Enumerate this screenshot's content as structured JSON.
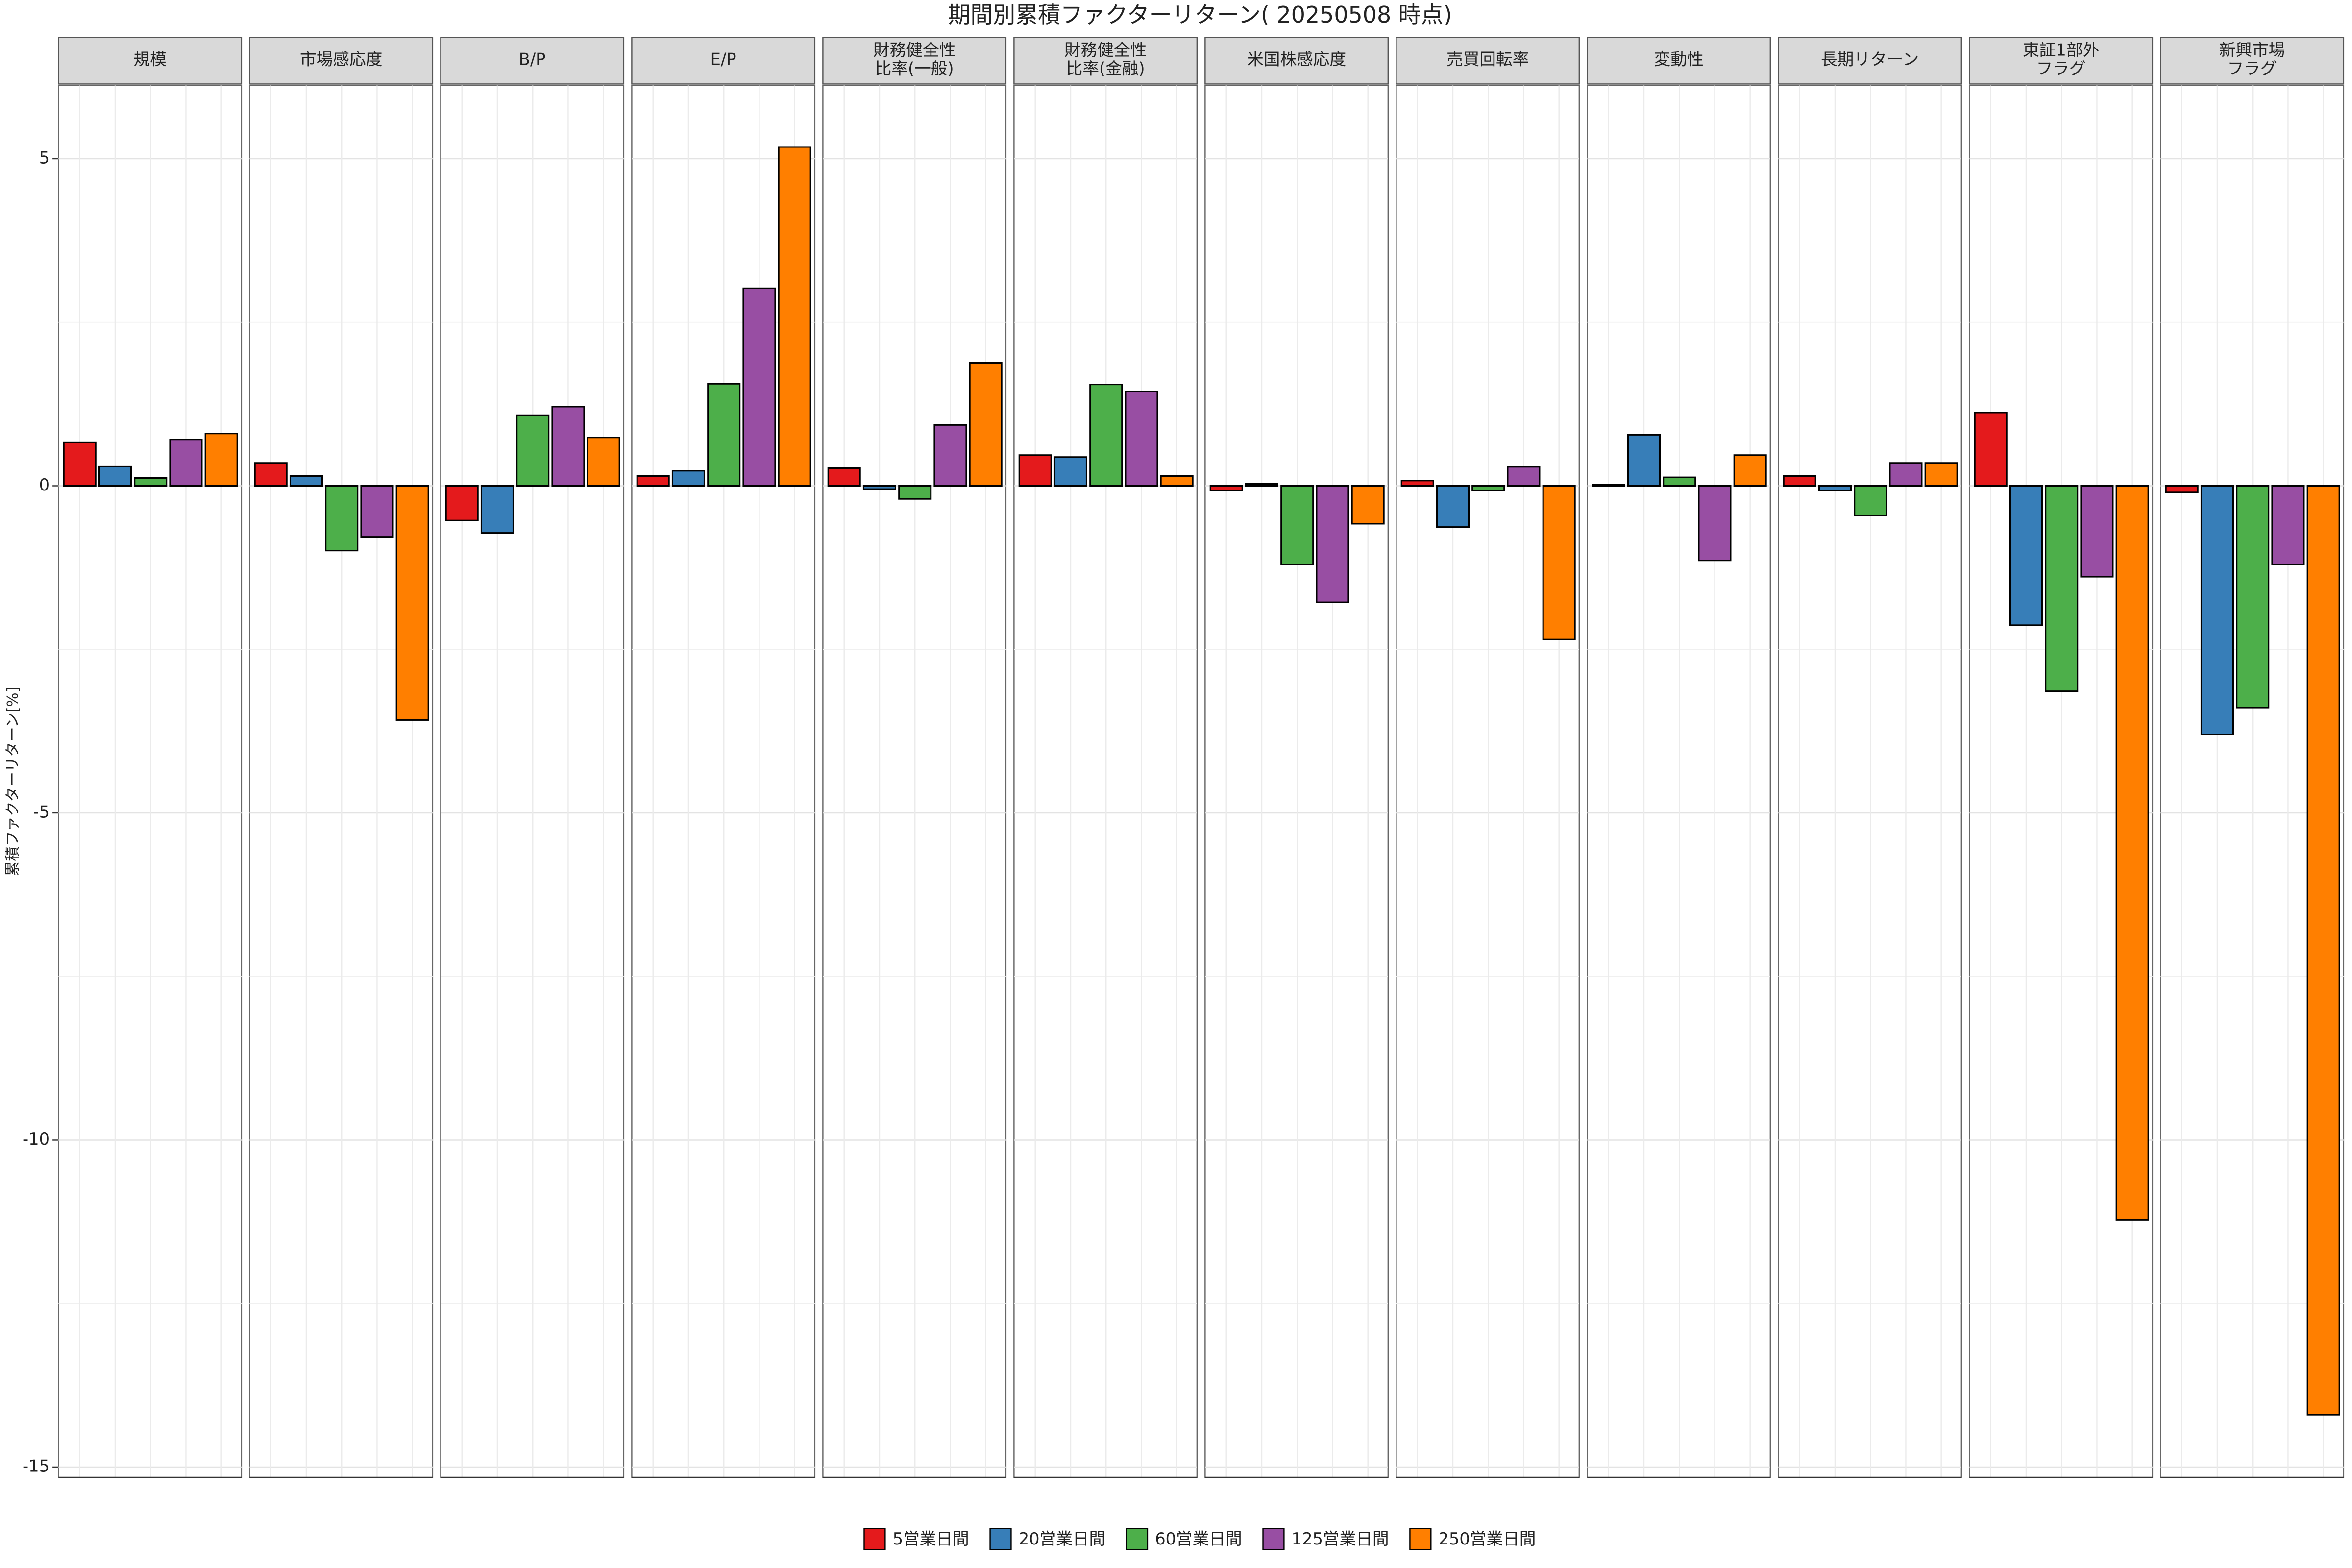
{
  "chart_data": {
    "type": "bar",
    "title": "期間別累積ファクターリターン( 20250508 時点)",
    "y_label": "累積ファクターリターン[%]",
    "categories": [
      "規模",
      "市場感応度",
      "B/P",
      "E/P",
      "財務健全性\n比率(一般)",
      "財務健全性\n比率(金融)",
      "米国株感応度",
      "売買回転率",
      "変動性",
      "長期リターン",
      "東証1部外\nフラグ",
      "新興市場\nフラグ"
    ],
    "series": [
      {
        "name": "5営業日間",
        "color": "#e41a1c",
        "values": [
          0.66,
          0.35,
          -0.53,
          0.15,
          0.27,
          0.47,
          -0.07,
          0.08,
          0.02,
          0.15,
          1.12,
          -0.1
        ]
      },
      {
        "name": "20営業日間",
        "color": "#377eb8",
        "values": [
          0.3,
          0.15,
          -0.72,
          0.23,
          -0.05,
          0.44,
          0.03,
          -0.63,
          0.78,
          -0.07,
          -2.13,
          -3.8
        ]
      },
      {
        "name": "60営業日間",
        "color": "#4daf4a",
        "values": [
          0.12,
          -0.99,
          1.08,
          1.56,
          -0.2,
          1.55,
          -1.2,
          -0.07,
          0.13,
          -0.45,
          -3.14,
          -3.39
        ]
      },
      {
        "name": "125営業日間",
        "color": "#984ea3",
        "values": [
          0.71,
          -0.78,
          1.21,
          3.02,
          0.93,
          1.44,
          -1.78,
          0.29,
          -1.14,
          0.35,
          -1.39,
          -1.2
        ]
      },
      {
        "name": "250営業日間",
        "color": "#ff7f00",
        "values": [
          0.8,
          -3.58,
          0.74,
          5.18,
          1.88,
          0.15,
          -0.58,
          -2.35,
          0.47,
          0.35,
          -11.22,
          -14.2
        ]
      }
    ],
    "ylim": [
      -15.16,
      6.12
    ],
    "yticks": [
      -15,
      -10,
      -5,
      0,
      5
    ],
    "grid": true,
    "legend": "bottom"
  }
}
